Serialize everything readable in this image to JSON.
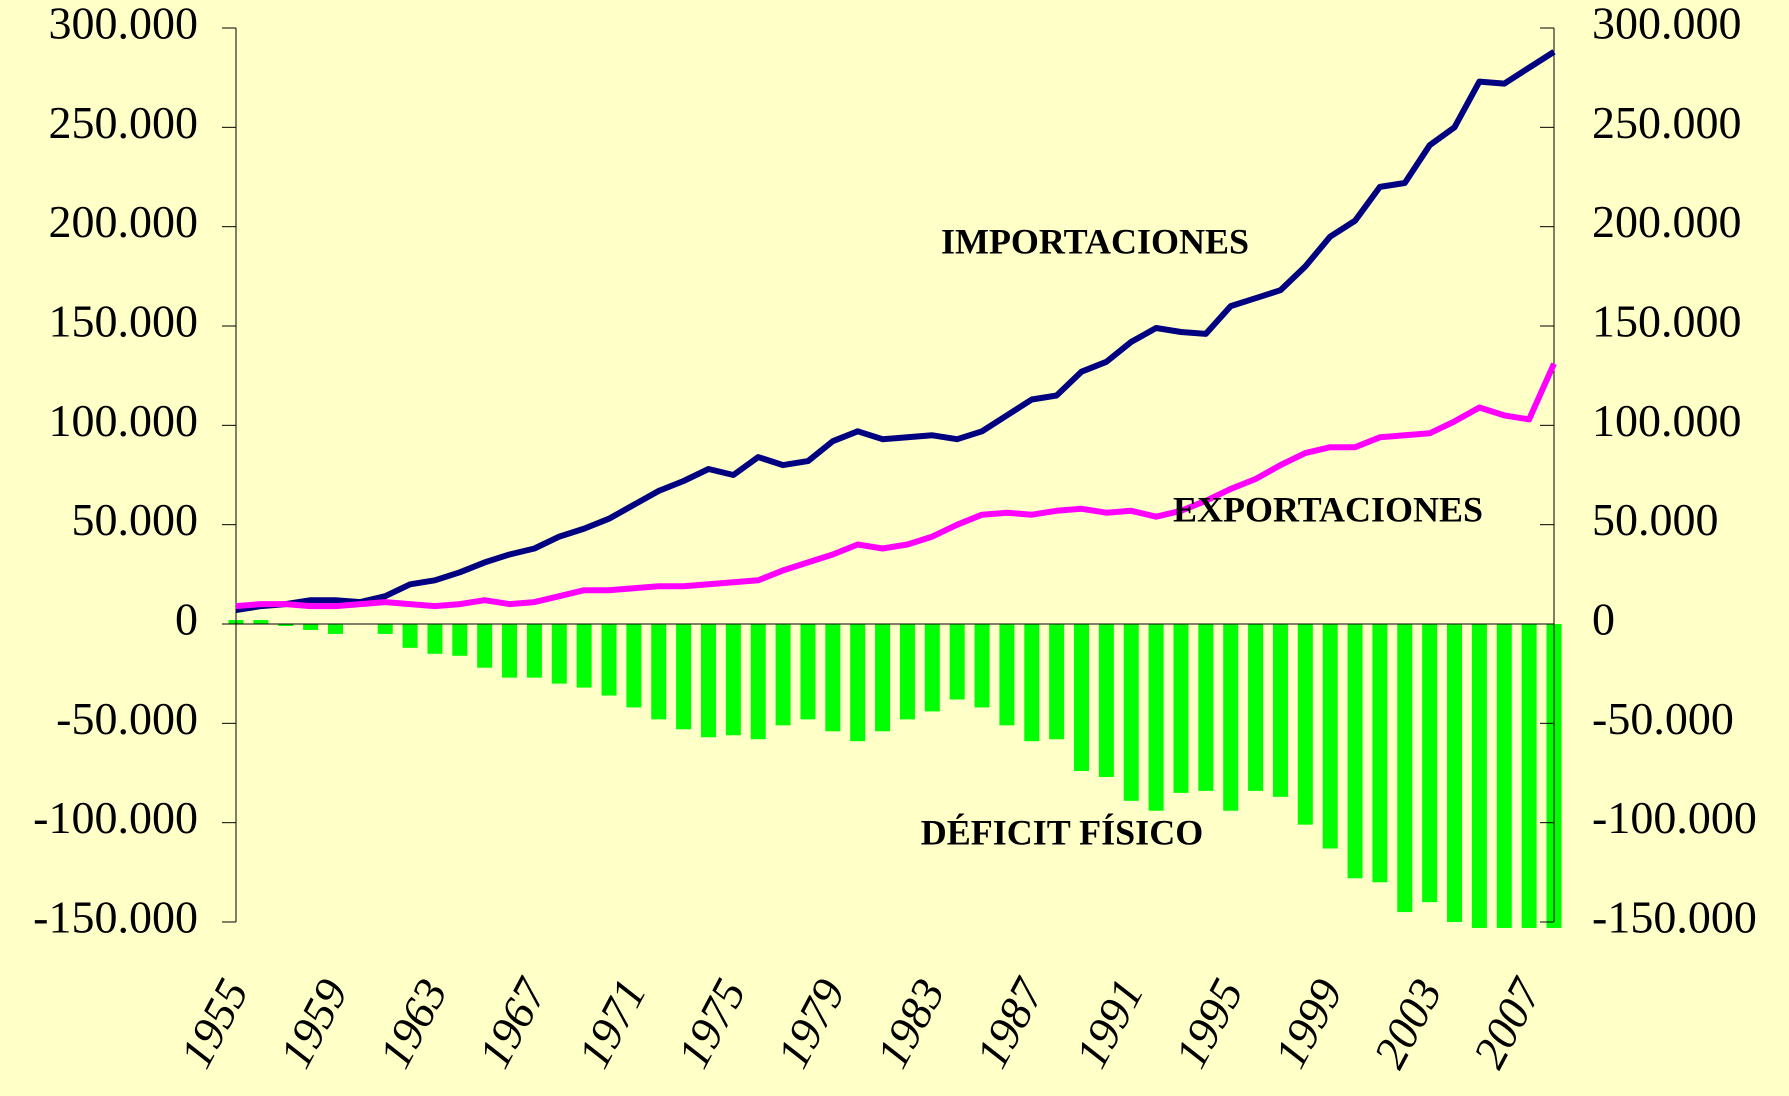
{
  "chart_data": {
    "type": "line_bar",
    "categories": [
      "1955",
      null,
      null,
      null,
      "1959",
      null,
      null,
      null,
      "1963",
      null,
      null,
      null,
      "1967",
      null,
      null,
      null,
      "1971",
      null,
      null,
      null,
      "1975",
      null,
      null,
      null,
      "1979",
      null,
      null,
      null,
      "1983",
      null,
      null,
      null,
      "1987",
      null,
      null,
      null,
      "1991",
      null,
      null,
      null,
      "1995",
      null,
      null,
      null,
      "1999",
      null,
      null,
      null,
      "2003",
      null,
      null,
      null,
      "2007",
      null
    ],
    "series": [
      {
        "name": "IMPORTACIONES",
        "type": "line",
        "color": "#000080",
        "values": [
          7000,
          9000,
          10000,
          12000,
          12000,
          11000,
          14000,
          20000,
          22000,
          26000,
          31000,
          35000,
          38000,
          44000,
          48000,
          53000,
          60000,
          67000,
          72000,
          78000,
          75000,
          84000,
          80000,
          82000,
          92000,
          97000,
          93000,
          94000,
          95000,
          93000,
          97000,
          105000,
          113000,
          115000,
          127000,
          132000,
          142000,
          149000,
          147000,
          146000,
          160000,
          164000,
          168000,
          180000,
          195000,
          203000,
          220000,
          222000,
          241000,
          250000,
          273000,
          272000,
          280000,
          288000
        ]
      },
      {
        "name": "EXPORTACIONES",
        "type": "line",
        "color": "#ff00ff",
        "values": [
          9000,
          10000,
          10000,
          9000,
          9000,
          10000,
          11000,
          10000,
          9000,
          10000,
          12000,
          10000,
          11000,
          14000,
          17000,
          17000,
          18000,
          19000,
          19000,
          20000,
          21000,
          22000,
          27000,
          31000,
          35000,
          40000,
          38000,
          40000,
          44000,
          50000,
          55000,
          56000,
          55000,
          57000,
          58000,
          56000,
          57000,
          54000,
          57000,
          62000,
          68000,
          73000,
          80000,
          86000,
          89000,
          89000,
          94000,
          95000,
          96000,
          102000,
          109000,
          105000,
          103000,
          131000
        ]
      },
      {
        "name": "DÉFICIT FÍSICO",
        "type": "bar",
        "color": "#00ff00",
        "values": [
          2000,
          2000,
          -1000,
          -3000,
          -5000,
          0,
          -5000,
          -12000,
          -15000,
          -16000,
          -22000,
          -27000,
          -27000,
          -30000,
          -32000,
          -36000,
          -42000,
          -48000,
          -53000,
          -57000,
          -56000,
          -58000,
          -51000,
          -48000,
          -54000,
          -59000,
          -54000,
          -48000,
          -44000,
          -38000,
          -42000,
          -51000,
          -59000,
          -58000,
          -74000,
          -77000,
          -89000,
          -94000,
          -85000,
          -84000,
          -94000,
          -84000,
          -87000,
          -101000,
          -113000,
          -128000,
          -130000,
          -145000,
          -140000,
          -150000,
          -153000,
          -153000,
          -153000,
          -153000
        ]
      }
    ],
    "ylim": [
      -150000,
      300000
    ],
    "yticks": [
      {
        "value": -150000,
        "label": "-150.000"
      },
      {
        "value": -100000,
        "label": "-100.000"
      },
      {
        "value": -50000,
        "label": "-50.000"
      },
      0,
      {
        "value": 50000,
        "label": "50.000"
      },
      {
        "value": 100000,
        "label": "100.000"
      },
      {
        "value": 150000,
        "label": "150.000"
      },
      {
        "value": 200000,
        "label": "200.000"
      },
      {
        "value": 250000,
        "label": "250.000"
      },
      {
        "value": 300000,
        "label": "300.000"
      }
    ],
    "y2lim": [
      -150000,
      300000
    ],
    "y2ticks": [
      {
        "value": -150000,
        "label": "-150.000"
      },
      {
        "value": -100000,
        "label": "-100.000"
      },
      {
        "value": -50000,
        "label": "-50.000"
      },
      0,
      {
        "value": 50000,
        "label": "50.000"
      },
      {
        "value": 100000,
        "label": "100.000"
      },
      {
        "value": 150000,
        "label": "150.000"
      },
      {
        "value": 200000,
        "label": "200.000"
      },
      {
        "value": 250000,
        "label": "250.000"
      },
      {
        "value": 300000,
        "label": "300.000"
      }
    ],
    "annotations": [
      "IMPORTACIONES",
      "EXPORTACIONES",
      "DÉFICIT FÍSICO"
    ]
  }
}
